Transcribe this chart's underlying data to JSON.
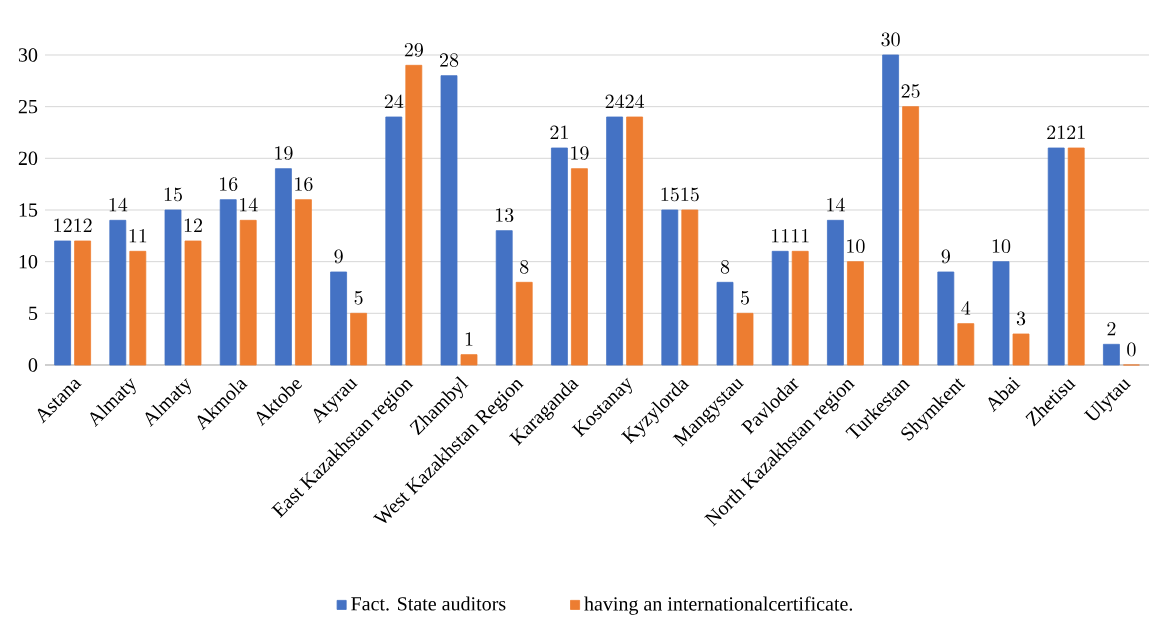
{
  "chart_data": {
    "type": "bar",
    "categories": [
      "Astana",
      "Almaty",
      "Almaty",
      "Akmola",
      "Aktobe",
      "Atyrau",
      "East Kazakhstan region",
      "Zhambyl",
      "West Kazakhstan Region",
      "Karaganda",
      "Kostanay",
      "Kyzylorda",
      "Mangystau",
      "Pavlodar",
      "North Kazakhstan region",
      "Turkestan",
      "Shymkent",
      "Abai",
      "Zhetisu",
      "Ulytau"
    ],
    "series": [
      {
        "name": "Fact. State auditors",
        "color": "#4472c4",
        "values": [
          12,
          14,
          15,
          16,
          19,
          9,
          24,
          28,
          13,
          21,
          24,
          15,
          8,
          11,
          14,
          30,
          9,
          10,
          21,
          2
        ]
      },
      {
        "name": "having an internationalcertificate.",
        "color": "#ed7d31",
        "values": [
          12,
          11,
          12,
          14,
          16,
          5,
          29,
          1,
          8,
          19,
          24,
          15,
          5,
          11,
          10,
          25,
          4,
          3,
          21,
          0
        ]
      }
    ],
    "ylim": [
      0,
      30
    ],
    "yticks": [
      0,
      5,
      10,
      15,
      20,
      25,
      30
    ],
    "grid": "y",
    "legend": "bottom",
    "data_labels": true
  }
}
